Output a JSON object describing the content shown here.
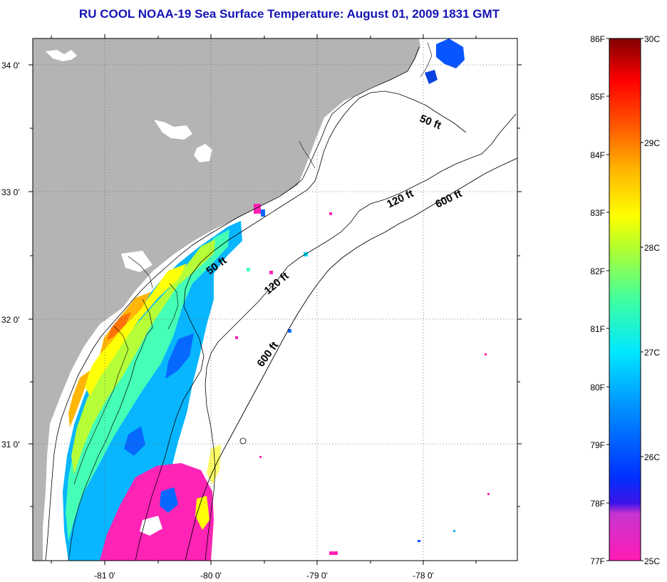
{
  "title": "RU COOL  NOAA-19  Sea Surface Temperature:  August 01, 2009 1831 GMT",
  "map": {
    "lat_labels": [
      "34 0'",
      "33 0'",
      "32 0'",
      "31 0'"
    ],
    "lon_labels": [
      "-81 0'",
      "-80 0'",
      "-79 0'",
      "-78 0'"
    ],
    "contours": {
      "c50_top": "50 ft",
      "c120_top": "120 ft",
      "c600_top": "600 ft",
      "c50_mid": "50 ft",
      "c120_mid": "120 ft",
      "c600_mid": "600 ft"
    },
    "colors": {
      "land": "#b4b4b4",
      "ocean_nodata": "#ffffff"
    }
  },
  "colorbar": {
    "fahrenheit": [
      "86F",
      "85F",
      "84F",
      "83F",
      "82F",
      "81F",
      "80F",
      "79F",
      "78F",
      "77F"
    ],
    "celsius": [
      "30C",
      "29C",
      "28C",
      "27C",
      "26C",
      "25C"
    ]
  }
}
